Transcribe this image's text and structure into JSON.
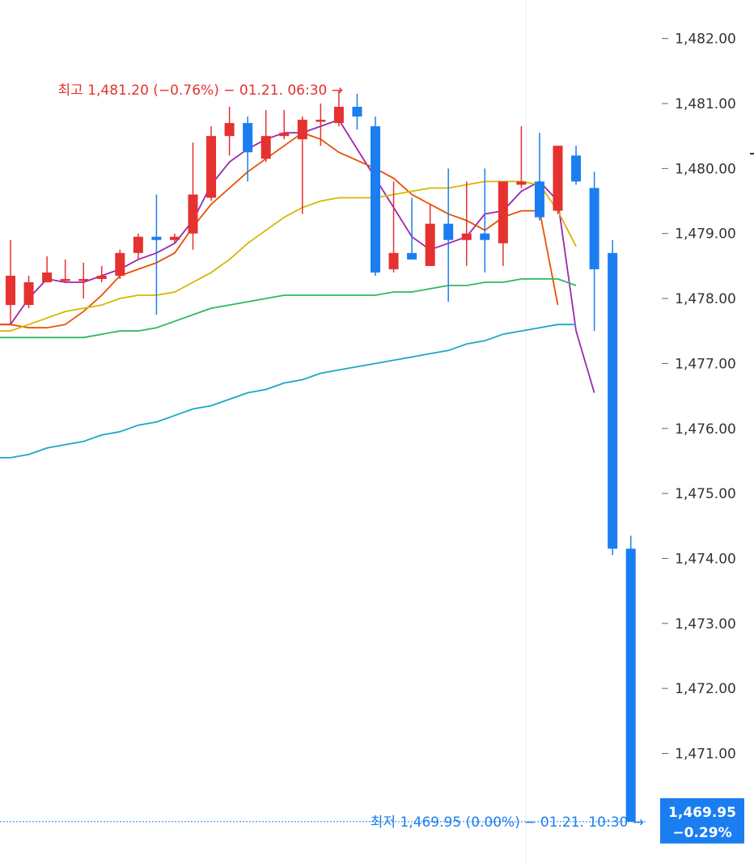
{
  "chart_data": {
    "type": "candlestick",
    "y_axis": {
      "ticks": [
        "1,482.00",
        "1,481.00",
        "1,480.00",
        "1,479.00",
        "1,478.00",
        "1,477.00",
        "1,476.00",
        "1,475.00",
        "1,474.00",
        "1,473.00",
        "1,472.00",
        "1,471.00"
      ],
      "tick_values": [
        1482,
        1481,
        1480,
        1479,
        1478,
        1477,
        1476,
        1475,
        1474,
        1473,
        1472,
        1471
      ],
      "ylim": [
        1469.5,
        1482.5
      ],
      "position": "right"
    },
    "candles": [
      {
        "o": 1477.9,
        "h": 1478.9,
        "l": 1477.6,
        "c": 1478.35
      },
      {
        "o": 1477.9,
        "h": 1478.35,
        "l": 1477.85,
        "c": 1478.25
      },
      {
        "o": 1478.25,
        "h": 1478.65,
        "l": 1478.25,
        "c": 1478.4
      },
      {
        "o": 1478.3,
        "h": 1478.6,
        "l": 1478.25,
        "c": 1478.3
      },
      {
        "o": 1478.3,
        "h": 1478.55,
        "l": 1478.0,
        "c": 1478.3
      },
      {
        "o": 1478.3,
        "h": 1478.5,
        "l": 1478.25,
        "c": 1478.35
      },
      {
        "o": 1478.35,
        "h": 1478.75,
        "l": 1478.3,
        "c": 1478.7
      },
      {
        "o": 1478.7,
        "h": 1479.0,
        "l": 1478.6,
        "c": 1478.95
      },
      {
        "o": 1478.95,
        "h": 1479.6,
        "l": 1477.75,
        "c": 1478.9
      },
      {
        "o": 1478.9,
        "h": 1479.0,
        "l": 1478.85,
        "c": 1478.95
      },
      {
        "o": 1479.0,
        "h": 1480.4,
        "l": 1478.75,
        "c": 1479.6
      },
      {
        "o": 1479.55,
        "h": 1480.65,
        "l": 1479.5,
        "c": 1480.5
      },
      {
        "o": 1480.5,
        "h": 1480.95,
        "l": 1480.2,
        "c": 1480.7
      },
      {
        "o": 1480.7,
        "h": 1480.8,
        "l": 1479.8,
        "c": 1480.25
      },
      {
        "o": 1480.15,
        "h": 1480.9,
        "l": 1480.1,
        "c": 1480.5
      },
      {
        "o": 1480.5,
        "h": 1480.9,
        "l": 1480.45,
        "c": 1480.55
      },
      {
        "o": 1480.45,
        "h": 1480.8,
        "l": 1479.3,
        "c": 1480.75
      },
      {
        "o": 1480.75,
        "h": 1481.0,
        "l": 1480.35,
        "c": 1480.75
      },
      {
        "o": 1480.7,
        "h": 1481.2,
        "l": 1480.65,
        "c": 1480.95
      },
      {
        "o": 1480.95,
        "h": 1481.15,
        "l": 1480.6,
        "c": 1480.8
      },
      {
        "o": 1480.65,
        "h": 1480.8,
        "l": 1478.35,
        "c": 1478.4
      },
      {
        "o": 1478.45,
        "h": 1479.8,
        "l": 1478.4,
        "c": 1478.7
      },
      {
        "o": 1478.7,
        "h": 1479.55,
        "l": 1478.6,
        "c": 1478.6
      },
      {
        "o": 1478.5,
        "h": 1479.45,
        "l": 1478.5,
        "c": 1479.15
      },
      {
        "o": 1479.15,
        "h": 1480.0,
        "l": 1477.95,
        "c": 1478.9
      },
      {
        "o": 1478.9,
        "h": 1479.8,
        "l": 1478.5,
        "c": 1479.0
      },
      {
        "o": 1479.0,
        "h": 1480.0,
        "l": 1478.4,
        "c": 1478.9
      },
      {
        "o": 1478.85,
        "h": 1479.8,
        "l": 1478.5,
        "c": 1479.8
      },
      {
        "o": 1479.75,
        "h": 1480.65,
        "l": 1479.7,
        "c": 1479.8
      },
      {
        "o": 1479.8,
        "h": 1480.55,
        "l": 1479.2,
        "c": 1479.25
      },
      {
        "o": 1479.35,
        "h": 1480.35,
        "l": 1479.3,
        "c": 1480.35
      },
      {
        "o": 1480.2,
        "h": 1480.35,
        "l": 1479.75,
        "c": 1479.8
      },
      {
        "o": 1479.7,
        "h": 1479.95,
        "l": 1477.5,
        "c": 1478.45
      },
      {
        "o": 1478.7,
        "h": 1478.9,
        "l": 1474.05,
        "c": 1474.15
      },
      {
        "o": 1474.15,
        "h": 1474.35,
        "l": 1469.95,
        "c": 1469.95
      }
    ],
    "moving_averages": [
      {
        "color": "#9c27b0",
        "values": [
          1477.6,
          1478.0,
          1478.3,
          1478.25,
          1478.25,
          1478.35,
          1478.45,
          1478.6,
          1478.7,
          1478.85,
          1479.2,
          1479.75,
          1480.1,
          1480.3,
          1480.45,
          1480.55,
          1480.55,
          1480.65,
          1480.75,
          null,
          1479.85,
          1479.4,
          1478.95,
          1478.75,
          1478.85,
          1478.95,
          1479.3,
          1479.35,
          1479.65,
          1479.8,
          1479.5,
          1477.5,
          1476.55,
          null,
          null
        ]
      },
      {
        "color": "#e65100",
        "values": [
          1477.6,
          1477.55,
          1477.55,
          1477.6,
          1477.8,
          1478.05,
          1478.35,
          1478.45,
          1478.55,
          1478.7,
          1479.1,
          1479.45,
          1479.7,
          1479.95,
          1480.15,
          1480.35,
          1480.55,
          1480.45,
          1480.25,
          null,
          1480.0,
          1479.85,
          1479.6,
          1479.45,
          1479.3,
          1479.2,
          1479.05,
          1479.25,
          1479.35,
          1479.35,
          1477.9,
          null,
          null,
          null,
          null
        ]
      },
      {
        "color": "#d4b800",
        "values": [
          1477.5,
          1477.6,
          1477.7,
          1477.8,
          1477.85,
          1477.9,
          1478.0,
          1478.05,
          1478.05,
          1478.1,
          1478.25,
          1478.4,
          1478.6,
          1478.85,
          1479.05,
          1479.25,
          1479.4,
          1479.5,
          1479.55,
          null,
          1479.55,
          1479.6,
          1479.65,
          1479.7,
          1479.7,
          1479.75,
          1479.8,
          1479.8,
          1479.8,
          1479.75,
          1479.35,
          1478.8,
          null,
          null,
          null
        ]
      },
      {
        "color": "#2fb85f",
        "values": [
          1477.4,
          1477.4,
          1477.4,
          1477.4,
          1477.4,
          1477.45,
          1477.5,
          1477.5,
          1477.55,
          1477.65,
          1477.75,
          1477.85,
          1477.9,
          1477.95,
          1478.0,
          1478.05,
          1478.05,
          1478.05,
          1478.05,
          null,
          1478.05,
          1478.1,
          1478.1,
          1478.15,
          1478.2,
          1478.2,
          1478.25,
          1478.25,
          1478.3,
          1478.3,
          1478.3,
          1478.2,
          null,
          null,
          null
        ]
      },
      {
        "color": "#1ba8c4",
        "values": [
          1475.55,
          1475.6,
          1475.7,
          1475.75,
          1475.8,
          1475.9,
          1475.95,
          1476.05,
          1476.1,
          1476.2,
          1476.3,
          1476.35,
          1476.45,
          1476.55,
          1476.6,
          1476.7,
          1476.75,
          1476.85,
          1476.9,
          null,
          1477.0,
          1477.05,
          1477.1,
          1477.15,
          1477.2,
          1477.3,
          1477.35,
          1477.45,
          1477.5,
          1477.55,
          1477.6,
          1477.6,
          null,
          null,
          null
        ]
      }
    ],
    "high_note": {
      "label": "최고 1,481.20 (−0.76%) − 01.21. 06:30 →",
      "value": 1481.2,
      "color": "#e5312f"
    },
    "low_note": {
      "label": "최저 1,469.95 (0.00%) − 01.21. 10:30 →",
      "value": 1469.95,
      "color": "#1a7ef0"
    },
    "last_price": {
      "price": "1,469.95",
      "change": "−0.29%",
      "value": 1469.95,
      "color": "#1a7ef0"
    },
    "colors": {
      "up": "#e5312f",
      "down": "#1a7ef0",
      "grid": "#eeeeee",
      "axis_text": "#333333"
    }
  }
}
